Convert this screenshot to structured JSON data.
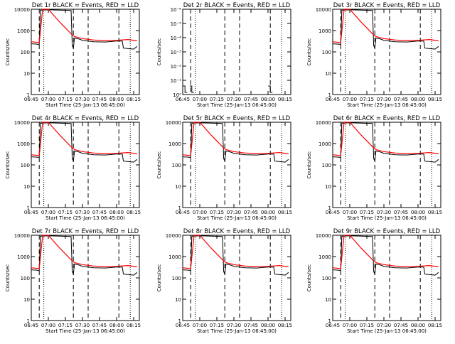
{
  "chart_data": [
    {
      "type": "line",
      "title": "Det 1r BLACK = Events, RED = LLD",
      "xlabel": "Start Time (25-Jan-13 06:45:00)",
      "ylabel": "Counts/sec",
      "yscale": "log",
      "ylim": [
        1,
        10000
      ],
      "xlim": [
        "06:45",
        "08:20"
      ],
      "xticks": [
        "06:45",
        "07:00",
        "07:15",
        "07:30",
        "07:45",
        "08:00",
        "08:15"
      ],
      "yticks": [
        "1",
        "10",
        "100",
        "1000",
        "10000"
      ],
      "series": []
    },
    {
      "type": "line",
      "title": "Det 2r BLACK = Events, RED = LLD",
      "xlabel": "Start Time (25-Jan-13 06:45:00)",
      "ylabel": "Counts/sec",
      "yscale": "log",
      "ylim": [
        1,
        1e-06
      ],
      "xlim": [
        "06:45",
        "08:20"
      ],
      "xticks": [
        "06:45",
        "07:00",
        "07:15",
        "07:30",
        "07:45",
        "08:00",
        "08:15"
      ],
      "yticks": [
        "10⁰",
        "10⁻¹",
        "10⁻²",
        "10⁻³",
        "10⁻⁴",
        "10⁻⁵",
        "10⁻⁶"
      ],
      "series": []
    },
    {
      "type": "line",
      "title": "Det 3r BLACK = Events, RED = LLD",
      "xlabel": "Start Time (25-Jan-13 06:45:00)",
      "ylabel": "Counts/sec",
      "yscale": "log",
      "ylim": [
        1,
        10000
      ],
      "xlim": [
        "06:45",
        "08:20"
      ],
      "xticks": [
        "06:45",
        "07:00",
        "07:15",
        "07:30",
        "07:45",
        "08:00",
        "08:15"
      ],
      "yticks": [
        "1",
        "10",
        "100",
        "1000",
        "10000"
      ],
      "series": []
    },
    {
      "type": "line",
      "title": "Det 4r BLACK = Events, RED = LLD",
      "xlabel": "Start Time (25-Jan-13 06:45:00)",
      "ylabel": "Counts/sec",
      "yscale": "log",
      "ylim": [
        1,
        10000
      ],
      "xlim": [
        "06:45",
        "08:20"
      ],
      "xticks": [
        "06:45",
        "07:00",
        "07:15",
        "07:30",
        "07:45",
        "08:00",
        "08:15"
      ],
      "yticks": [
        "1",
        "10",
        "100",
        "1000",
        "10000"
      ],
      "series": []
    },
    {
      "type": "line",
      "title": "Det 5r BLACK = Events, RED = LLD",
      "xlabel": "Start Time (25-Jan-13 06:45:00)",
      "ylabel": "Counts/sec",
      "yscale": "log",
      "ylim": [
        1,
        10000
      ],
      "xlim": [
        "06:45",
        "08:20"
      ],
      "xticks": [
        "06:45",
        "07:00",
        "07:15",
        "07:30",
        "07:45",
        "08:00",
        "08:15"
      ],
      "yticks": [
        "1",
        "10",
        "100",
        "1000",
        "10000"
      ],
      "series": []
    },
    {
      "type": "line",
      "title": "Det 6r BLACK = Events, RED = LLD",
      "xlabel": "Start Time (25-Jan-13 06:45:00)",
      "ylabel": "Counts/sec",
      "yscale": "log",
      "ylim": [
        1,
        10000
      ],
      "xlim": [
        "06:45",
        "08:20"
      ],
      "xticks": [
        "06:45",
        "07:00",
        "07:15",
        "07:30",
        "07:45",
        "08:00",
        "08:15"
      ],
      "yticks": [
        "1",
        "10",
        "100",
        "1000",
        "10000"
      ],
      "series": []
    },
    {
      "type": "line",
      "title": "Det 7r BLACK = Events, RED = LLD",
      "xlabel": "Start Time (25-Jan-13 06:45:00)",
      "ylabel": "Counts/sec",
      "yscale": "log",
      "ylim": [
        1,
        10000
      ],
      "xlim": [
        "06:45",
        "08:20"
      ],
      "xticks": [
        "06:45",
        "07:00",
        "07:15",
        "07:30",
        "07:45",
        "08:00",
        "08:15"
      ],
      "yticks": [
        "1",
        "10",
        "100",
        "1000",
        "10000"
      ],
      "series": []
    },
    {
      "type": "line",
      "title": "Det 8r BLACK = Events, RED = LLD",
      "xlabel": "Start Time (25-Jan-13 06:45:00)",
      "ylabel": "Counts/sec",
      "yscale": "log",
      "ylim": [
        1,
        10000
      ],
      "xlim": [
        "06:45",
        "08:20"
      ],
      "xticks": [
        "06:45",
        "07:00",
        "07:15",
        "07:30",
        "07:45",
        "08:00",
        "08:15"
      ],
      "yticks": [
        "1",
        "10",
        "100",
        "1000",
        "10000"
      ],
      "series": []
    },
    {
      "type": "line",
      "title": "Det 9r BLACK = Events, RED = LLD",
      "xlabel": "Start Time (25-Jan-13 06:45:00)",
      "ylabel": "Counts/sec",
      "yscale": "log",
      "ylim": [
        1,
        10000
      ],
      "xlim": [
        "06:45",
        "08:20"
      ],
      "xticks": [
        "06:45",
        "07:00",
        "07:15",
        "07:30",
        "07:45",
        "08:00",
        "08:15"
      ],
      "yticks": [
        "1",
        "10",
        "100",
        "1000",
        "10000"
      ],
      "series": []
    }
  ],
  "shared": {
    "dashed_markers": [
      "06:52",
      "07:22",
      "07:35",
      "08:02"
    ],
    "dotted_markers": [
      "06:56",
      "08:12"
    ],
    "red_lld": {
      "name": "RED = LLD",
      "color": "#ff0000",
      "x": [
        "06:45",
        "06:50",
        "06:52",
        "06:55",
        "07:00",
        "07:10",
        "07:20",
        "07:23",
        "07:30",
        "07:40",
        "07:50",
        "08:00",
        "08:10",
        "08:18"
      ],
      "y": [
        300,
        280,
        270,
        10000,
        12000,
        2500,
        700,
        520,
        420,
        360,
        340,
        350,
        380,
        330
      ]
    },
    "black_events": {
      "name": "BLACK = Events",
      "color": "#000000",
      "x": [
        "06:45",
        "06:50",
        "06:52",
        "06:53",
        "07:00",
        "07:20",
        "07:21",
        "07:22",
        "07:23",
        "07:27",
        "07:30",
        "07:40",
        "07:50",
        "08:00",
        "08:05",
        "08:06",
        "08:12",
        "08:15",
        "08:18"
      ],
      "y": [
        240,
        230,
        220,
        9000,
        9500,
        8800,
        200,
        150,
        450,
        400,
        350,
        300,
        290,
        320,
        320,
        150,
        140,
        135,
        180
      ]
    },
    "det2_spikes": [
      {
        "x": "06:47",
        "y": 1e-06
      },
      {
        "x": "06:53",
        "y": 1e-06
      },
      {
        "x": "08:02",
        "y": 1e-06
      }
    ]
  }
}
